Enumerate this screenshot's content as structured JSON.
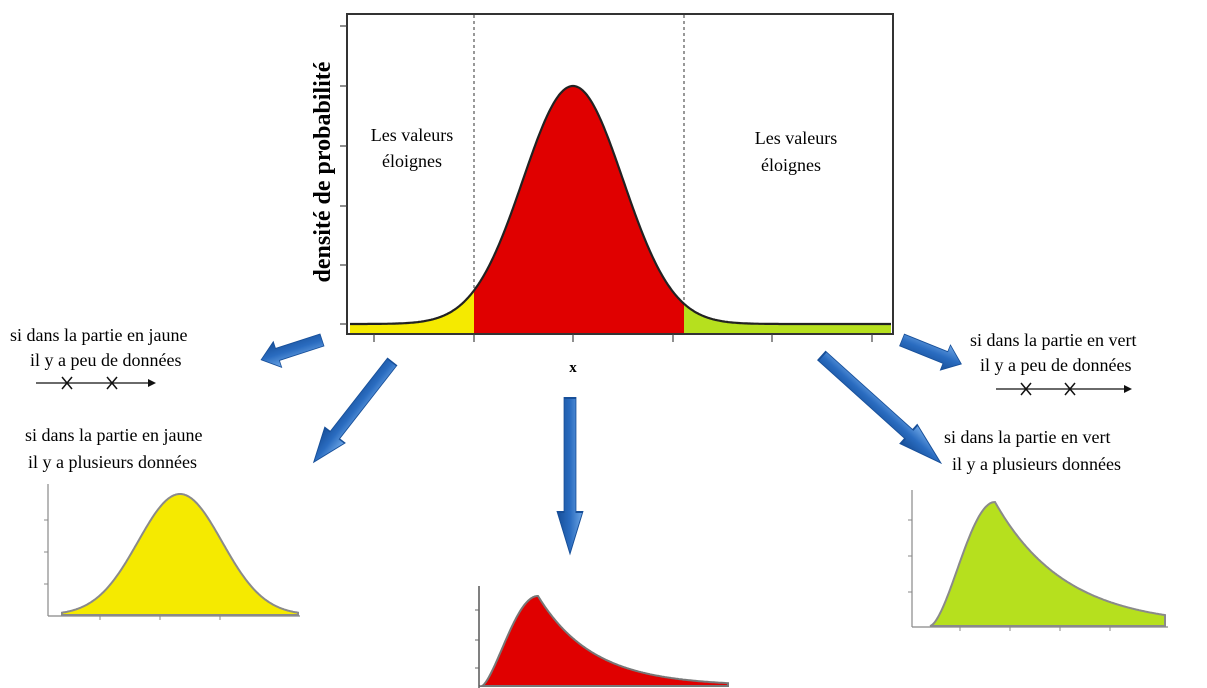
{
  "main_chart": {
    "ylabel": "densité de probabilité",
    "xlabel": "x",
    "left_region_label": [
      "Les valeurs",
      "éloignes"
    ],
    "right_region_label": [
      "Les valeurs",
      "éloignes"
    ]
  },
  "notes": {
    "left_few": [
      "si dans la partie en jaune",
      "il y a peu de données"
    ],
    "left_many": [
      "si dans la partie en jaune",
      "il y a plusieurs données"
    ],
    "right_few": [
      "si dans la partie en vert",
      "il y a peu de données"
    ],
    "right_many": [
      "si dans la partie en vert",
      "il y a plusieurs données"
    ]
  },
  "colors": {
    "left_tail": "#f5ea00",
    "center": "#e00000",
    "right_tail": "#b6e01e",
    "arrow": "#1f63b8",
    "curve": "#222222"
  },
  "icons": {
    "data_point_marker": "x-mark-icon",
    "arrow": "arrow-icon"
  }
}
